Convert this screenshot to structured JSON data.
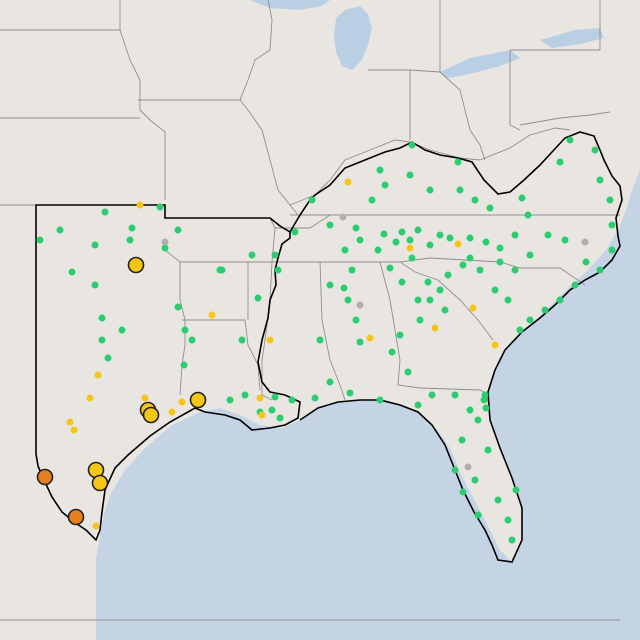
{
  "map": {
    "colors": {
      "land": "#e9e6e2",
      "water": "#c4d4e4",
      "lake": "#b9cfe4",
      "state_border": "#8e8e8e",
      "region_outline": "#000000",
      "good": "#2ecc71",
      "moderate": "#f5c518",
      "unhealthy_sensitive": "#e67e22",
      "no_data": "#b0b0b0"
    },
    "legend_meaning": {
      "good": "green",
      "moderate": "yellow",
      "unhealthy_sensitive": "orange",
      "no_data": "gray"
    }
  },
  "stations": [
    {
      "c": "g",
      "p": [
        105,
        212
      ]
    },
    {
      "c": "g",
      "p": [
        132,
        228
      ]
    },
    {
      "c": "g",
      "p": [
        160,
        207
      ]
    },
    {
      "c": "g",
      "p": [
        178,
        230
      ]
    },
    {
      "c": "g",
      "p": [
        95,
        245
      ]
    },
    {
      "c": "g",
      "p": [
        60,
        230
      ]
    },
    {
      "c": "g",
      "p": [
        40,
        240
      ]
    },
    {
      "c": "g",
      "p": [
        72,
        272
      ]
    },
    {
      "c": "g",
      "p": [
        95,
        285
      ]
    },
    {
      "c": "g",
      "p": [
        130,
        240
      ]
    },
    {
      "c": "g",
      "p": [
        165,
        248
      ]
    },
    {
      "c": "g",
      "p": [
        222,
        270
      ]
    },
    {
      "c": "g",
      "p": [
        178,
        307
      ]
    },
    {
      "c": "g",
      "p": [
        185,
        330
      ]
    },
    {
      "c": "g",
      "p": [
        122,
        330
      ]
    },
    {
      "c": "g",
      "p": [
        102,
        340
      ]
    },
    {
      "c": "g",
      "p": [
        102,
        318
      ]
    },
    {
      "c": "g",
      "p": [
        108,
        358
      ]
    },
    {
      "c": "g",
      "p": [
        192,
        340
      ]
    },
    {
      "c": "g",
      "p": [
        184,
        365
      ]
    },
    {
      "c": "g",
      "p": [
        230,
        400
      ]
    },
    {
      "c": "g",
      "p": [
        245,
        395
      ]
    },
    {
      "c": "g",
      "p": [
        275,
        397
      ]
    },
    {
      "c": "g",
      "p": [
        292,
        400
      ]
    },
    {
      "c": "g",
      "p": [
        315,
        398
      ]
    },
    {
      "c": "g",
      "p": [
        350,
        393
      ]
    },
    {
      "c": "g",
      "p": [
        380,
        400
      ]
    },
    {
      "c": "g",
      "p": [
        272,
        410
      ]
    },
    {
      "c": "g",
      "p": [
        260,
        412
      ]
    },
    {
      "c": "g",
      "p": [
        280,
        418
      ]
    },
    {
      "c": "g",
      "p": [
        242,
        340
      ]
    },
    {
      "c": "g",
      "p": [
        258,
        298
      ]
    },
    {
      "c": "g",
      "p": [
        275,
        255
      ]
    },
    {
      "c": "g",
      "p": [
        278,
        270
      ]
    },
    {
      "c": "g",
      "p": [
        295,
        232
      ]
    },
    {
      "c": "g",
      "p": [
        312,
        200
      ]
    },
    {
      "c": "g",
      "p": [
        330,
        225
      ]
    },
    {
      "c": "g",
      "p": [
        345,
        250
      ]
    },
    {
      "c": "g",
      "p": [
        352,
        270
      ]
    },
    {
      "c": "g",
      "p": [
        348,
        300
      ]
    },
    {
      "c": "g",
      "p": [
        356,
        320
      ]
    },
    {
      "c": "g",
      "p": [
        360,
        342
      ]
    },
    {
      "c": "g",
      "p": [
        330,
        382
      ]
    },
    {
      "c": "g",
      "p": [
        320,
        340
      ]
    },
    {
      "c": "g",
      "p": [
        390,
        268
      ]
    },
    {
      "c": "g",
      "p": [
        372,
        200
      ]
    },
    {
      "c": "g",
      "p": [
        380,
        170
      ]
    },
    {
      "c": "g",
      "p": [
        385,
        185
      ]
    },
    {
      "c": "g",
      "p": [
        410,
        175
      ]
    },
    {
      "c": "g",
      "p": [
        412,
        145
      ]
    },
    {
      "c": "g",
      "p": [
        430,
        190
      ]
    },
    {
      "c": "g",
      "p": [
        458,
        162
      ]
    },
    {
      "c": "g",
      "p": [
        460,
        190
      ]
    },
    {
      "c": "g",
      "p": [
        475,
        200
      ]
    },
    {
      "c": "g",
      "p": [
        490,
        208
      ]
    },
    {
      "c": "g",
      "p": [
        522,
        198
      ]
    },
    {
      "c": "g",
      "p": [
        528,
        215
      ]
    },
    {
      "c": "g",
      "p": [
        560,
        162
      ]
    },
    {
      "c": "g",
      "p": [
        570,
        140
      ]
    },
    {
      "c": "g",
      "p": [
        595,
        150
      ]
    },
    {
      "c": "g",
      "p": [
        600,
        180
      ]
    },
    {
      "c": "g",
      "p": [
        610,
        200
      ]
    },
    {
      "c": "g",
      "p": [
        612,
        225
      ]
    },
    {
      "c": "g",
      "p": [
        612,
        250
      ]
    },
    {
      "c": "g",
      "p": [
        600,
        270
      ]
    },
    {
      "c": "g",
      "p": [
        586,
        262
      ]
    },
    {
      "c": "g",
      "p": [
        575,
        285
      ]
    },
    {
      "c": "g",
      "p": [
        560,
        300
      ]
    },
    {
      "c": "g",
      "p": [
        545,
        310
      ]
    },
    {
      "c": "g",
      "p": [
        530,
        320
      ]
    },
    {
      "c": "g",
      "p": [
        520,
        330
      ]
    },
    {
      "c": "g",
      "p": [
        508,
        300
      ]
    },
    {
      "c": "g",
      "p": [
        495,
        290
      ]
    },
    {
      "c": "g",
      "p": [
        480,
        270
      ]
    },
    {
      "c": "g",
      "p": [
        463,
        265
      ]
    },
    {
      "c": "g",
      "p": [
        448,
        275
      ]
    },
    {
      "c": "g",
      "p": [
        440,
        290
      ]
    },
    {
      "c": "g",
      "p": [
        445,
        310
      ]
    },
    {
      "c": "g",
      "p": [
        430,
        300
      ]
    },
    {
      "c": "g",
      "p": [
        418,
        300
      ]
    },
    {
      "c": "g",
      "p": [
        402,
        282
      ]
    },
    {
      "c": "g",
      "p": [
        400,
        335
      ]
    },
    {
      "c": "g",
      "p": [
        392,
        352
      ]
    },
    {
      "c": "g",
      "p": [
        408,
        372
      ]
    },
    {
      "c": "g",
      "p": [
        418,
        405
      ]
    },
    {
      "c": "g",
      "p": [
        432,
        395
      ]
    },
    {
      "c": "g",
      "p": [
        455,
        395
      ]
    },
    {
      "c": "g",
      "p": [
        470,
        410
      ]
    },
    {
      "c": "g",
      "p": [
        478,
        420
      ]
    },
    {
      "c": "g",
      "p": [
        485,
        395
      ]
    },
    {
      "c": "g",
      "p": [
        486,
        408
      ]
    },
    {
      "c": "g",
      "p": [
        484,
        400
      ]
    },
    {
      "c": "g",
      "p": [
        488,
        450
      ]
    },
    {
      "c": "g",
      "p": [
        475,
        480
      ]
    },
    {
      "c": "g",
      "p": [
        462,
        440
      ]
    },
    {
      "c": "g",
      "p": [
        455,
        470
      ]
    },
    {
      "c": "g",
      "p": [
        463,
        492
      ]
    },
    {
      "c": "g",
      "p": [
        478,
        515
      ]
    },
    {
      "c": "g",
      "p": [
        498,
        500
      ]
    },
    {
      "c": "g",
      "p": [
        508,
        520
      ]
    },
    {
      "c": "g",
      "p": [
        516,
        490
      ]
    },
    {
      "c": "g",
      "p": [
        512,
        540
      ]
    },
    {
      "c": "g",
      "p": [
        440,
        235
      ]
    },
    {
      "c": "g",
      "p": [
        418,
        230
      ]
    },
    {
      "c": "g",
      "p": [
        430,
        245
      ]
    },
    {
      "c": "g",
      "p": [
        450,
        238
      ]
    },
    {
      "c": "g",
      "p": [
        470,
        238
      ]
    },
    {
      "c": "g",
      "p": [
        486,
        242
      ]
    },
    {
      "c": "g",
      "p": [
        500,
        248
      ]
    },
    {
      "c": "g",
      "p": [
        515,
        235
      ]
    },
    {
      "c": "g",
      "p": [
        548,
        235
      ]
    },
    {
      "c": "g",
      "p": [
        565,
        240
      ]
    },
    {
      "c": "g",
      "p": [
        530,
        255
      ]
    },
    {
      "c": "g",
      "p": [
        515,
        270
      ]
    },
    {
      "c": "g",
      "p": [
        500,
        262
      ]
    },
    {
      "c": "g",
      "p": [
        470,
        258
      ]
    },
    {
      "c": "g",
      "p": [
        412,
        258
      ]
    },
    {
      "c": "g",
      "p": [
        378,
        250
      ]
    },
    {
      "c": "g",
      "p": [
        360,
        240
      ]
    },
    {
      "c": "g",
      "p": [
        356,
        228
      ]
    },
    {
      "c": "g",
      "p": [
        344,
        288
      ]
    },
    {
      "c": "g",
      "p": [
        330,
        285
      ]
    },
    {
      "c": "g",
      "p": [
        428,
        282
      ]
    },
    {
      "c": "g",
      "p": [
        420,
        320
      ]
    },
    {
      "c": "g",
      "p": [
        402,
        232
      ]
    },
    {
      "c": "g",
      "p": [
        384,
        234
      ]
    },
    {
      "c": "g",
      "p": [
        396,
        242
      ]
    },
    {
      "c": "g",
      "p": [
        410,
        240
      ]
    },
    {
      "c": "y",
      "p": [
        140,
        205
      ]
    },
    {
      "c": "y",
      "p": [
        348,
        182
      ]
    },
    {
      "c": "y",
      "p": [
        212,
        315
      ]
    },
    {
      "c": "y",
      "p": [
        98,
        375
      ]
    },
    {
      "c": "y",
      "p": [
        90,
        398
      ]
    },
    {
      "c": "y",
      "p": [
        70,
        422
      ]
    },
    {
      "c": "y",
      "p": [
        74,
        430
      ]
    },
    {
      "c": "y",
      "p": [
        145,
        398
      ]
    },
    {
      "c": "y",
      "p": [
        172,
        412
      ]
    },
    {
      "c": "y",
      "p": [
        182,
        402
      ]
    },
    {
      "c": "y",
      "p": [
        260,
        398
      ]
    },
    {
      "c": "y",
      "p": [
        262,
        415
      ]
    },
    {
      "c": "y",
      "p": [
        270,
        340
      ]
    },
    {
      "c": "y",
      "p": [
        370,
        338
      ]
    },
    {
      "c": "y",
      "p": [
        410,
        248
      ]
    },
    {
      "c": "y",
      "p": [
        458,
        244
      ]
    },
    {
      "c": "y",
      "p": [
        435,
        328
      ]
    },
    {
      "c": "y",
      "p": [
        473,
        308
      ]
    },
    {
      "c": "y",
      "p": [
        495,
        345
      ]
    },
    {
      "c": "y",
      "p": [
        96,
        526
      ]
    },
    {
      "c": "n",
      "p": [
        165,
        242
      ]
    },
    {
      "c": "n",
      "p": [
        343,
        217
      ]
    },
    {
      "c": "n",
      "p": [
        360,
        305
      ]
    },
    {
      "c": "n",
      "p": [
        585,
        242
      ]
    },
    {
      "c": "n",
      "p": [
        468,
        467
      ]
    },
    {
      "c": "g",
      "p": [
        252,
        255
      ]
    },
    {
      "c": "g",
      "p": [
        220,
        270
      ]
    }
  ],
  "large_markers": [
    {
      "c": "y",
      "p": [
        136,
        265
      ]
    },
    {
      "c": "y",
      "p": [
        148,
        410
      ]
    },
    {
      "c": "y",
      "p": [
        151,
        415
      ]
    },
    {
      "c": "y",
      "p": [
        198,
        400
      ]
    },
    {
      "c": "y",
      "p": [
        96,
        470
      ]
    },
    {
      "c": "y",
      "p": [
        100,
        483
      ]
    },
    {
      "c": "o",
      "p": [
        45,
        477
      ]
    },
    {
      "c": "o",
      "p": [
        76,
        517
      ]
    }
  ]
}
